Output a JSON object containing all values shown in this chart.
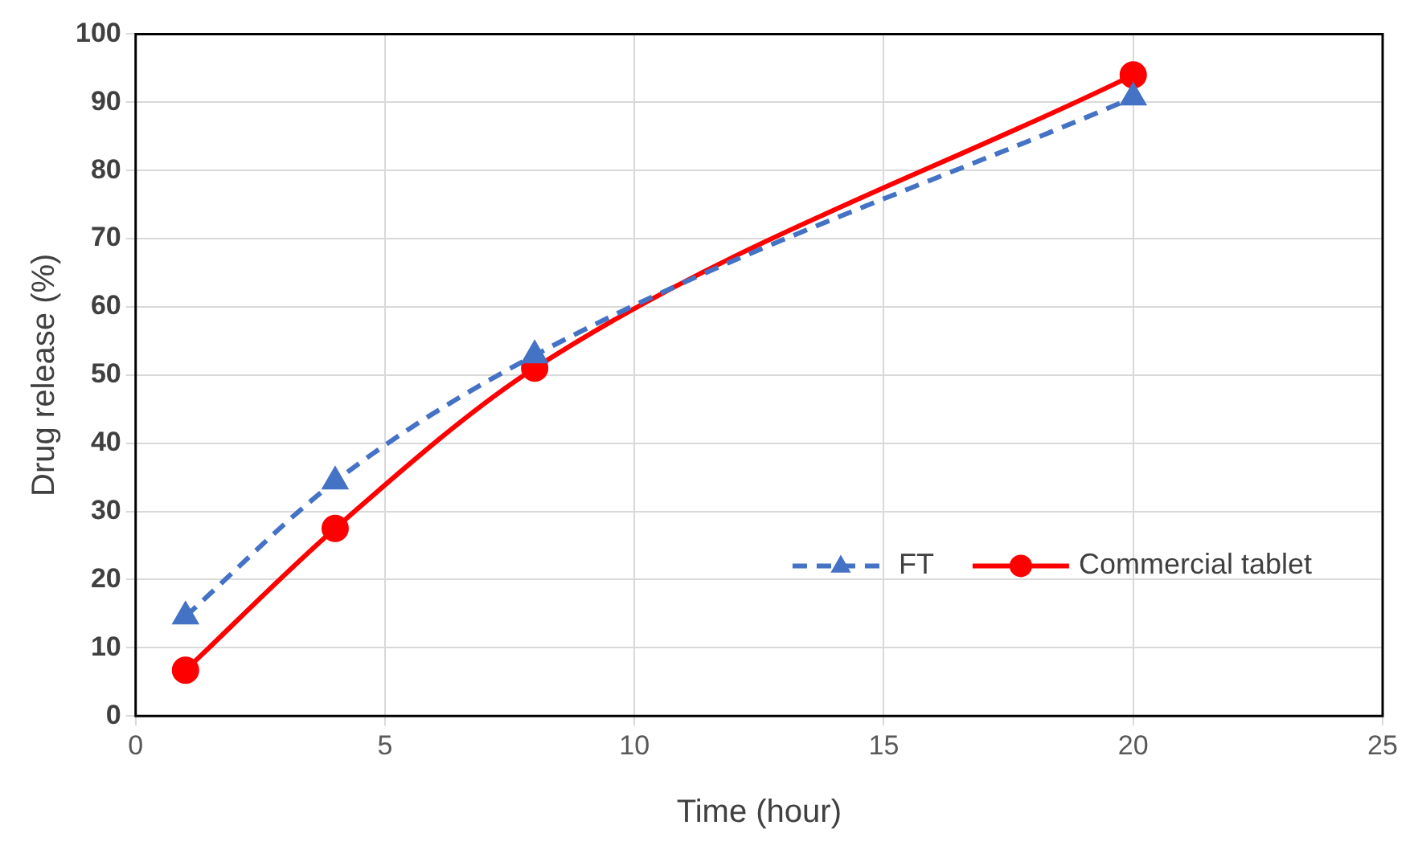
{
  "chart_data": {
    "type": "line",
    "xlabel": "Time (hour)",
    "ylabel": "Drug release (%)",
    "xlim": [
      0,
      25
    ],
    "xticks": [
      0,
      5,
      10,
      15,
      20,
      25
    ],
    "ylim": [
      0,
      100
    ],
    "yticks": [
      0,
      10,
      20,
      30,
      40,
      50,
      60,
      70,
      80,
      90,
      100
    ],
    "grid": true,
    "legend": "bottom right",
    "series": [
      {
        "name": "FT",
        "color": "#4472c4",
        "x": [
          1,
          4,
          8,
          20
        ],
        "values": [
          14.6,
          34.4,
          52.9,
          90.7
        ],
        "marker": "triangle",
        "line_style": "dashed"
      },
      {
        "name": "Commercial tablet",
        "color": "#ff0000",
        "x": [
          1,
          4,
          8,
          20
        ],
        "values": [
          6.7,
          27.5,
          51,
          94
        ],
        "marker": "circle",
        "line_style": "solid"
      }
    ]
  }
}
